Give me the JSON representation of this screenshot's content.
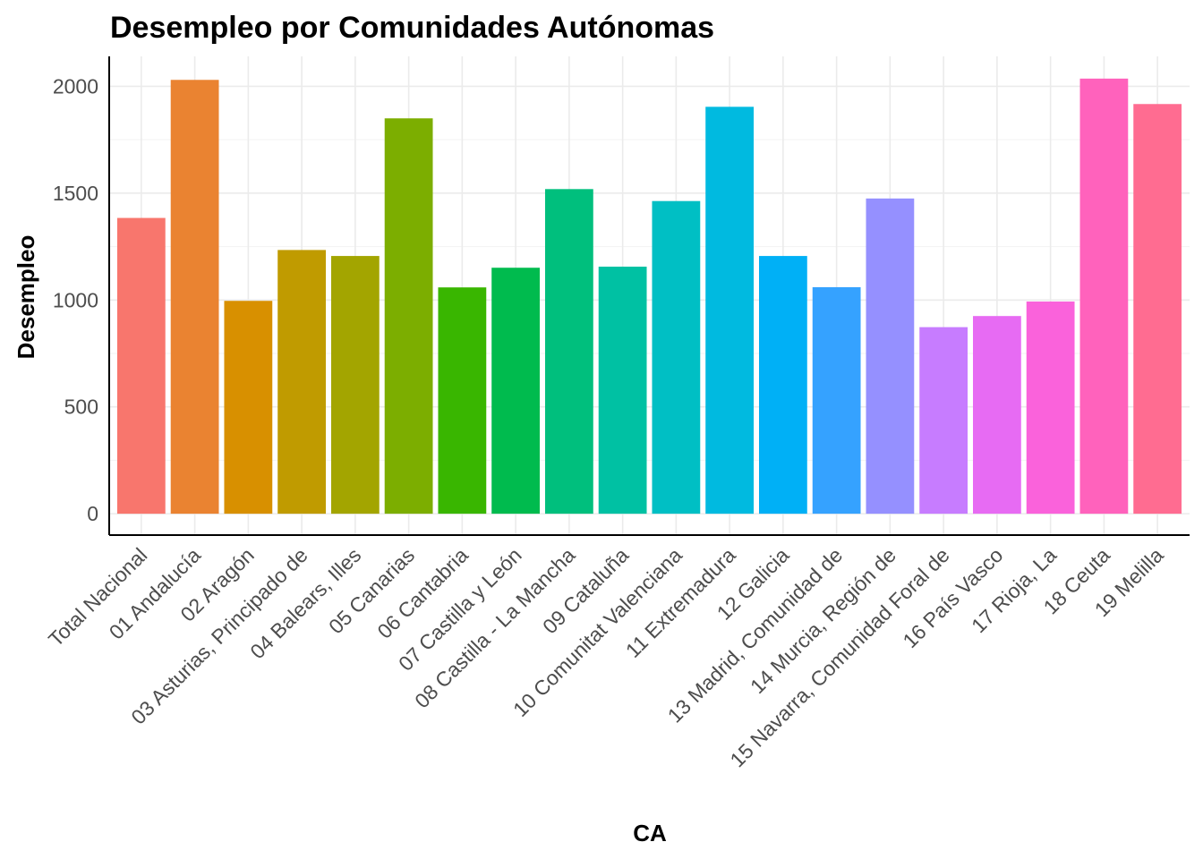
{
  "chart_data": {
    "type": "bar",
    "title": "Desempleo por Comunidades Autónomas",
    "xlabel": "CA",
    "ylabel": "Desempleo",
    "ylim": [
      -100,
      2140
    ],
    "yticks": [
      0,
      500,
      1000,
      1500,
      2000
    ],
    "grid": true,
    "legend": "none",
    "categories": [
      "Total Nacional",
      "01 Andalucía",
      "02 Aragón",
      "03 Asturias, Principado de",
      "04 Balears, Illes",
      "05 Canarias",
      "06 Cantabria",
      "07 Castilla y León",
      "08 Castilla - La Mancha",
      "09 Cataluña",
      "10 Comunitat Valenciana",
      "11 Extremadura",
      "12 Galicia",
      "13 Madrid, Comunidad de",
      "14 Murcia, Región de",
      "15 Navarra, Comunidad Foral de",
      "16 País Vasco",
      "17 Rioja, La",
      "18 Ceuta",
      "19 Melilla"
    ],
    "values": [
      1384,
      2030,
      996,
      1234,
      1206,
      1850,
      1059,
      1151,
      1519,
      1156,
      1463,
      1904,
      1206,
      1060,
      1475,
      873,
      925,
      993,
      2036,
      1917
    ],
    "colors": [
      "#F8766D",
      "#EA8331",
      "#D89000",
      "#C09B00",
      "#A3A500",
      "#7CAE00",
      "#39B600",
      "#00BB4E",
      "#00BF7D",
      "#00C1A3",
      "#00BFC4",
      "#00BAE0",
      "#00B0F6",
      "#35A2FF",
      "#9590FF",
      "#C77CFF",
      "#E76BF3",
      "#FA62DB",
      "#FF62BC",
      "#FF6C91"
    ]
  }
}
